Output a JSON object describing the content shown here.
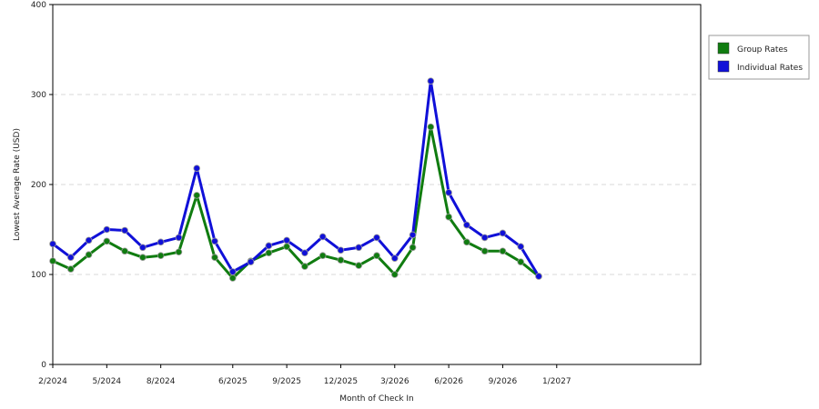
{
  "chart_data": {
    "type": "line",
    "title": "",
    "xlabel": "Month of Check In",
    "ylabel": "Lowest Average Rate (USD)",
    "ylim": [
      0,
      400
    ],
    "yticks": [
      0,
      100,
      200,
      300,
      400
    ],
    "x_range": [
      0,
      36
    ],
    "x_tick_labels": [
      {
        "i": 0,
        "label": "2/2024"
      },
      {
        "i": 3,
        "label": "5/2024"
      },
      {
        "i": 6,
        "label": "8/2024"
      },
      {
        "i": 10,
        "label": "6/2025"
      },
      {
        "i": 13,
        "label": "9/2025"
      },
      {
        "i": 16,
        "label": "12/2025"
      },
      {
        "i": 19,
        "label": "3/2026"
      },
      {
        "i": 22,
        "label": "6/2026"
      },
      {
        "i": 25,
        "label": "9/2026"
      },
      {
        "i": 28,
        "label": "1/2027"
      }
    ],
    "grid": true,
    "legend_position": "top-right",
    "series": [
      {
        "name": "Group Rates",
        "color": "#107c10",
        "values": [
          115,
          106,
          122,
          137,
          126,
          119,
          121,
          125,
          188,
          119,
          96,
          115,
          124,
          131,
          109,
          121,
          116,
          110,
          121,
          100,
          130,
          264,
          164,
          136,
          126,
          126,
          114,
          98
        ]
      },
      {
        "name": "Individual Rates",
        "color": "#1010d8",
        "values": [
          134,
          119,
          138,
          150,
          149,
          130,
          136,
          141,
          218,
          137,
          103,
          114,
          132,
          138,
          124,
          142,
          127,
          130,
          141,
          118,
          144,
          315,
          191,
          155,
          141,
          146,
          131,
          98
        ]
      }
    ]
  }
}
